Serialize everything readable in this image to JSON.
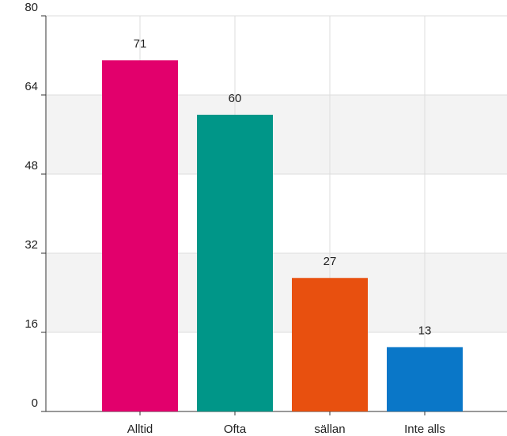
{
  "chart_data": {
    "type": "bar",
    "categories": [
      "Alltid",
      "Ofta",
      "sällan",
      "Inte alls"
    ],
    "values": [
      71,
      60,
      27,
      13
    ],
    "colors": [
      "#e2006c",
      "#009688",
      "#e8500f",
      "#0a77c8"
    ],
    "ylim": [
      0,
      80
    ],
    "yticks": [
      0,
      16,
      32,
      48,
      64,
      80
    ],
    "grid": true
  }
}
